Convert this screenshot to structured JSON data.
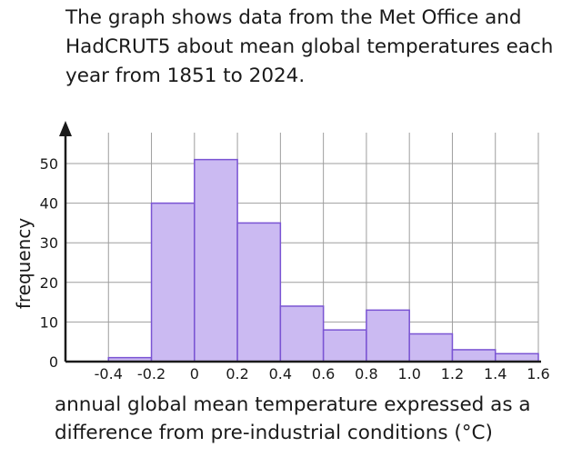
{
  "intro_text": "The graph shows data from the Met Office and HadCRUT5 about mean global temperatures each year from 1851 to 2024.",
  "chart_data": {
    "type": "bar",
    "title": "",
    "xlabel": "annual global mean temperature expressed as a difference from pre-industrial conditions (°C)",
    "ylabel": "frequency",
    "bin_edges": [
      -0.4,
      -0.2,
      0,
      0.2,
      0.4,
      0.6,
      0.8,
      1.0,
      1.2,
      1.4,
      1.6
    ],
    "values": [
      1,
      40,
      51,
      35,
      14,
      8,
      13,
      7,
      3,
      2
    ],
    "x_ticks": [
      "-0.4",
      "-0.2",
      "0",
      "0.2",
      "0.4",
      "0.6",
      "0.8",
      "1.0",
      "1.2",
      "1.4",
      "1.6"
    ],
    "y_ticks": [
      "0",
      "10",
      "20",
      "30",
      "40",
      "50"
    ],
    "xlim": [
      -0.6,
      1.6
    ],
    "ylim": [
      0,
      50
    ],
    "grid": true,
    "bar_fill": "#cbbaf2",
    "bar_stroke": "#7a54d3"
  }
}
